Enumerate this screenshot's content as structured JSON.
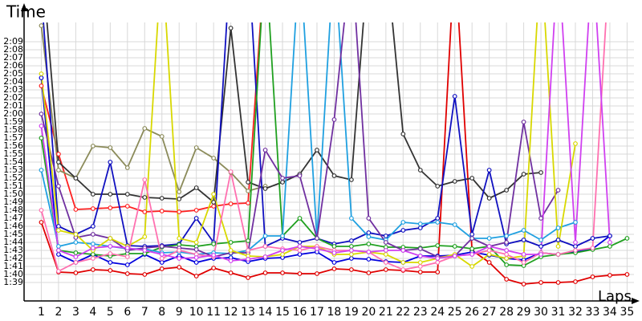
{
  "chart_data": {
    "type": "line",
    "title": "Time",
    "x_label": "Laps",
    "x": [
      1,
      2,
      3,
      4,
      5,
      6,
      7,
      8,
      9,
      10,
      11,
      12,
      13,
      14,
      15,
      16,
      17,
      18,
      19,
      20,
      21,
      22,
      23,
      24,
      25,
      26,
      27,
      28,
      29,
      30,
      31,
      32,
      33,
      34,
      35
    ],
    "xlim": [
      0,
      35.4
    ],
    "xticks": [
      1,
      2,
      3,
      4,
      5,
      6,
      7,
      8,
      9,
      10,
      11,
      12,
      13,
      14,
      15,
      16,
      17,
      18,
      19,
      20,
      21,
      22,
      23,
      24,
      25,
      26,
      27,
      28,
      29,
      30,
      31,
      32,
      33,
      34,
      35
    ],
    "ylim": [
      96.7,
      131.4
    ],
    "yticks": [
      {
        "value": 99,
        "label": "1:39"
      },
      {
        "value": 100,
        "label": "1:40"
      },
      {
        "value": 101,
        "label": "1:41"
      },
      {
        "value": 102,
        "label": "1:42"
      },
      {
        "value": 103,
        "label": "1:43"
      },
      {
        "value": 104,
        "label": "1:44"
      },
      {
        "value": 105,
        "label": "1:45"
      },
      {
        "value": 106,
        "label": "1:46"
      },
      {
        "value": 107,
        "label": "1:47"
      },
      {
        "value": 108,
        "label": "1:48"
      },
      {
        "value": 109,
        "label": "1:49"
      },
      {
        "value": 110,
        "label": "1:50"
      },
      {
        "value": 111,
        "label": "1:51"
      },
      {
        "value": 112,
        "label": "1:52"
      },
      {
        "value": 113,
        "label": "1:53"
      },
      {
        "value": 114,
        "label": "1:54"
      },
      {
        "value": 115,
        "label": "1:55"
      },
      {
        "value": 116,
        "label": "1:56"
      },
      {
        "value": 117,
        "label": "1:57"
      },
      {
        "value": 118,
        "label": "1:58"
      },
      {
        "value": 119,
        "label": "1:59"
      },
      {
        "value": 120,
        "label": "2:00"
      },
      {
        "value": 121,
        "label": "2:01"
      },
      {
        "value": 122,
        "label": "2:02"
      },
      {
        "value": 123,
        "label": "2:03"
      },
      {
        "value": 124,
        "label": "2:04"
      },
      {
        "value": 125,
        "label": "2:05"
      },
      {
        "value": 126,
        "label": "2:06"
      },
      {
        "value": 127,
        "label": "2:07"
      },
      {
        "value": 128,
        "label": "2:08"
      },
      {
        "value": 129,
        "label": "2:09"
      }
    ],
    "grid": true,
    "series": [
      {
        "color": "#e00000",
        "values": [
          106.5,
          100.3,
          100.2,
          100.6,
          100.5,
          100.1,
          100.0,
          100.7,
          100.9,
          99.8,
          100.8,
          100.2,
          99.6,
          100.2,
          100.2,
          100.1,
          100.1,
          100.7,
          100.6,
          100.2,
          100.6,
          100.5,
          100.3,
          100.3,
          140,
          103,
          101.5,
          99.4,
          98.8,
          99.0,
          99.0,
          99.1,
          99.7,
          99.9,
          100.0
        ]
      },
      {
        "color": "#ff2020",
        "values": [
          123.5,
          115,
          108.1,
          108.2,
          108.3,
          108.5,
          107.8,
          107.9,
          107.8,
          108.0,
          108.5,
          108.8,
          108.9,
          140,
          null,
          null,
          null,
          null,
          null,
          null,
          null,
          null,
          null,
          null,
          null,
          null,
          null,
          null,
          null,
          null,
          null,
          null,
          null,
          null,
          null
        ]
      },
      {
        "color": "#8b8b5a",
        "values": [
          131,
          113,
          112,
          116,
          115.8,
          113.3,
          118.2,
          117.2,
          110.3,
          115.8,
          114.5,
          112.7,
          110.4,
          111,
          null,
          null,
          null,
          null,
          null,
          null,
          null,
          null,
          null,
          null,
          null,
          null,
          null,
          null,
          null,
          null,
          null,
          null,
          null,
          null,
          null
        ]
      },
      {
        "color": "#333333",
        "values": [
          140,
          114,
          112,
          110,
          110,
          110,
          109.6,
          109.5,
          109.4,
          110.8,
          109.0,
          130.7,
          111.5,
          110.7,
          111.5,
          112.5,
          115.5,
          112.3,
          111.8,
          140,
          140,
          117.5,
          113,
          111,
          111.6,
          112,
          109.5,
          110.5,
          112.5,
          112.7,
          null,
          null,
          null,
          null,
          null
        ]
      },
      {
        "color": "#0000dd",
        "values": [
          124.5,
          102.5,
          101.5,
          102.5,
          101.5,
          101.2,
          102.5,
          101.5,
          102.3,
          101.5,
          102,
          102.1,
          101.6,
          102,
          102.1,
          102.5,
          102.8,
          101.5,
          102,
          101.9,
          101.6,
          101.5,
          102.3,
          102.3,
          102.4,
          102.8,
          102.4,
          102,
          101.8,
          102.7,
          102.5,
          102.8,
          103.2,
          104.8,
          null
        ]
      },
      {
        "color": "#1010c0",
        "values": [
          135,
          106,
          105,
          106,
          114,
          103.6,
          103.5,
          103.6,
          103.8,
          107,
          104,
          140,
          140,
          103.5,
          104.5,
          104,
          104.5,
          103.8,
          104.2,
          105.2,
          104.8,
          105.5,
          105.8,
          107,
          122.2,
          105,
          113,
          103.8,
          104.3,
          103.5,
          104.3,
          103.5,
          104.5,
          104.8,
          null
        ]
      },
      {
        "color": "#20a020",
        "values": [
          117,
          103,
          102.7,
          102.5,
          102.3,
          102.6,
          102.6,
          103.4,
          103.7,
          103.5,
          103.8,
          104,
          104.2,
          140,
          104.8,
          107,
          104.5,
          103.5,
          103.5,
          103.8,
          103.4,
          103.4,
          103.3,
          103.6,
          103.5,
          103.2,
          103.5,
          101.2,
          101.1,
          102.2,
          102.5,
          102.7,
          103.1,
          103.5,
          104.5
        ]
      },
      {
        "color": "#20a0e0",
        "values": [
          113,
          103.5,
          104,
          103.8,
          103.5,
          103.2,
          103.2,
          102.7,
          102.8,
          102.5,
          102.7,
          102.6,
          103,
          104.8,
          104.8,
          140,
          104.5,
          140,
          107,
          104.7,
          104.3,
          106.5,
          106.3,
          106.5,
          106.2,
          104.5,
          104.5,
          104.8,
          105.5,
          104.3,
          105.8,
          106.5,
          null,
          null,
          null
        ]
      },
      {
        "color": "#7030a0",
        "values": [
          120,
          111,
          104.6,
          105,
          104.5,
          103,
          103.3,
          103.5,
          103.3,
          103.1,
          102.2,
          102.7,
          102.7,
          115.5,
          112,
          112.3,
          104.5,
          119.3,
          140,
          107,
          104,
          103,
          103.2,
          102.2,
          102.3,
          104.5,
          103.5,
          104,
          119,
          107,
          110.5,
          null,
          null,
          null,
          null
        ]
      },
      {
        "color": "#d8d800",
        "values": [
          125,
          105.5,
          105,
          103,
          104.5,
          103.5,
          104.7,
          140,
          104.5,
          104,
          110,
          103,
          102.3,
          102.2,
          102.5,
          103.5,
          103.5,
          102.5,
          102.5,
          102.8,
          102.5,
          101.5,
          101.5,
          102,
          102.5,
          101,
          102.5,
          102,
          102.3,
          140,
          103.5,
          116.3,
          null,
          null,
          null
        ]
      },
      {
        "color": "#ff70b0",
        "values": [
          108,
          100.4,
          101.5,
          102,
          102.6,
          102.2,
          111.8,
          102,
          103,
          102.5,
          102.2,
          112.8,
          103,
          103.5,
          103.2,
          103,
          103.5,
          103,
          103,
          102.8,
          101.5,
          100.6,
          101,
          101.5,
          102.3,
          102.5,
          103,
          102.5,
          101.5,
          102.7,
          102.5,
          103,
          103.3,
          140,
          null
        ]
      },
      {
        "color": "#d040f0",
        "values": [
          118.5,
          103,
          102.2,
          103.3,
          103.5,
          103.3,
          103,
          102.5,
          102,
          102.1,
          102.4,
          101.7,
          101.9,
          102.2,
          103,
          103.5,
          103.2,
          102.7,
          103,
          102.8,
          103,
          103,
          102.3,
          102,
          102.3,
          102.5,
          103.5,
          103,
          102.5,
          102.5,
          140,
          104,
          140,
          104,
          null
        ]
      }
    ]
  }
}
